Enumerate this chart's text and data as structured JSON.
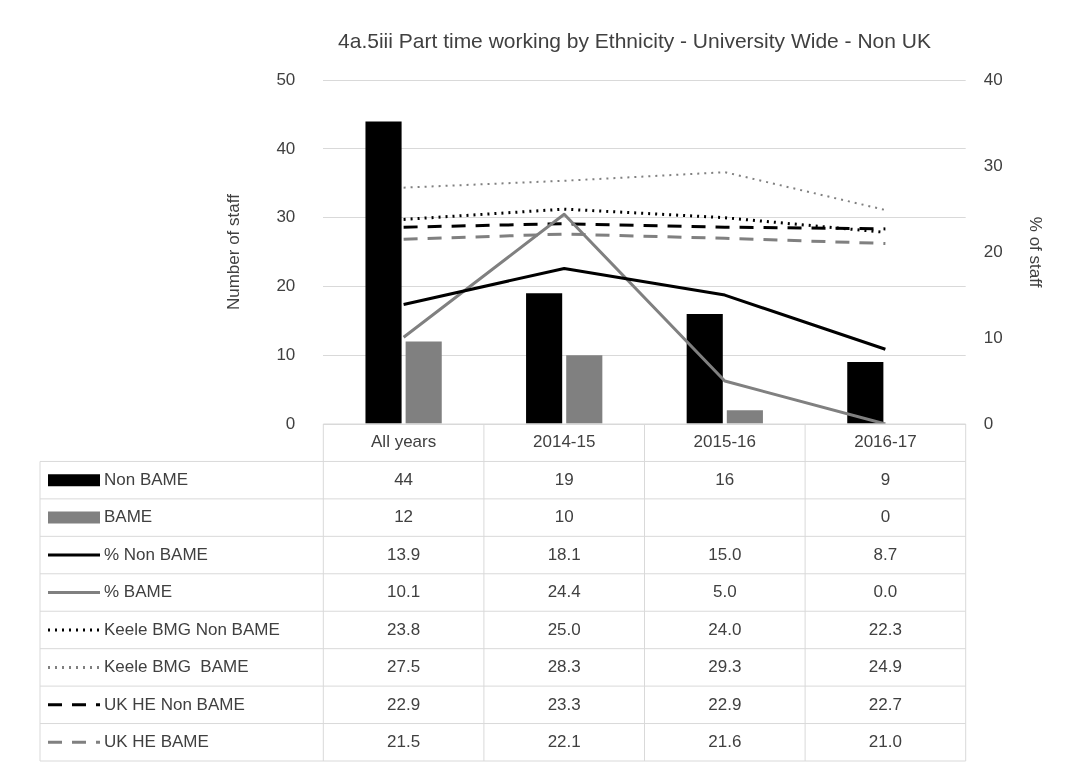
{
  "chart_data": {
    "type": "bar",
    "title": "4a.5iii Part time working by Ethnicity - University Wide - Non UK",
    "ylabel": "Number of staff",
    "y2label": "% of staff",
    "categories": [
      "All years",
      "2014-15",
      "2015-16",
      "2016-17"
    ],
    "ylim": [
      0,
      50
    ],
    "yticks": [
      0,
      10,
      20,
      30,
      40,
      50
    ],
    "y2lim": [
      0,
      40
    ],
    "y2ticks": [
      0,
      10,
      20,
      30,
      40
    ],
    "grid": "y",
    "legend": "bottom",
    "marker": "none",
    "series": [
      {
        "name": "Non BAME",
        "color": "#000000",
        "values": [
          44,
          19,
          16,
          9
        ],
        "value_labels": [
          "44",
          "19",
          "16",
          "9"
        ]
      },
      {
        "name": "BAME",
        "color": "#808080",
        "values": [
          12,
          10,
          2,
          0
        ],
        "value_labels": [
          "12",
          "10",
          null,
          "0"
        ]
      },
      {
        "name": "% Non BAME",
        "type": "line",
        "axis": "y2",
        "color": "#000000",
        "line_style": "solid",
        "values": [
          13.9,
          18.1,
          15.0,
          8.7
        ],
        "value_labels": [
          "13.9",
          "18.1",
          "15.0",
          "8.7"
        ]
      },
      {
        "name": "% BAME",
        "type": "line",
        "axis": "y2",
        "color": "#808080",
        "line_style": "solid",
        "values": [
          10.1,
          24.4,
          5.0,
          0.0
        ],
        "value_labels": [
          "10.1",
          "24.4",
          "5.0",
          "0.0"
        ]
      },
      {
        "name": "Keele BMG Non BAME",
        "type": "line",
        "axis": "y2",
        "color": "#000000",
        "line_style": "dotted",
        "values": [
          23.8,
          25.0,
          24.0,
          22.3
        ],
        "value_labels": [
          "23.8",
          "25.0",
          "24.0",
          "22.3"
        ]
      },
      {
        "name": "Keele BMG  BAME",
        "type": "line",
        "axis": "y2",
        "color": "#808080",
        "line_style": "dotted",
        "values": [
          27.5,
          28.3,
          29.3,
          24.9
        ],
        "value_labels": [
          "27.5",
          "28.3",
          "29.3",
          "24.9"
        ]
      },
      {
        "name": "UK HE Non BAME",
        "type": "line",
        "axis": "y2",
        "color": "#000000",
        "line_style": "dashed",
        "values": [
          22.9,
          23.3,
          22.9,
          22.7
        ],
        "value_labels": [
          "22.9",
          "23.3",
          "22.9",
          "22.7"
        ]
      },
      {
        "name": "UK HE BAME",
        "type": "line",
        "axis": "y2",
        "color": "#808080",
        "line_style": "dashed",
        "values": [
          21.5,
          22.1,
          21.6,
          21.0
        ],
        "value_labels": [
          "21.5",
          "22.1",
          "21.6",
          "21.0"
        ]
      }
    ]
  }
}
